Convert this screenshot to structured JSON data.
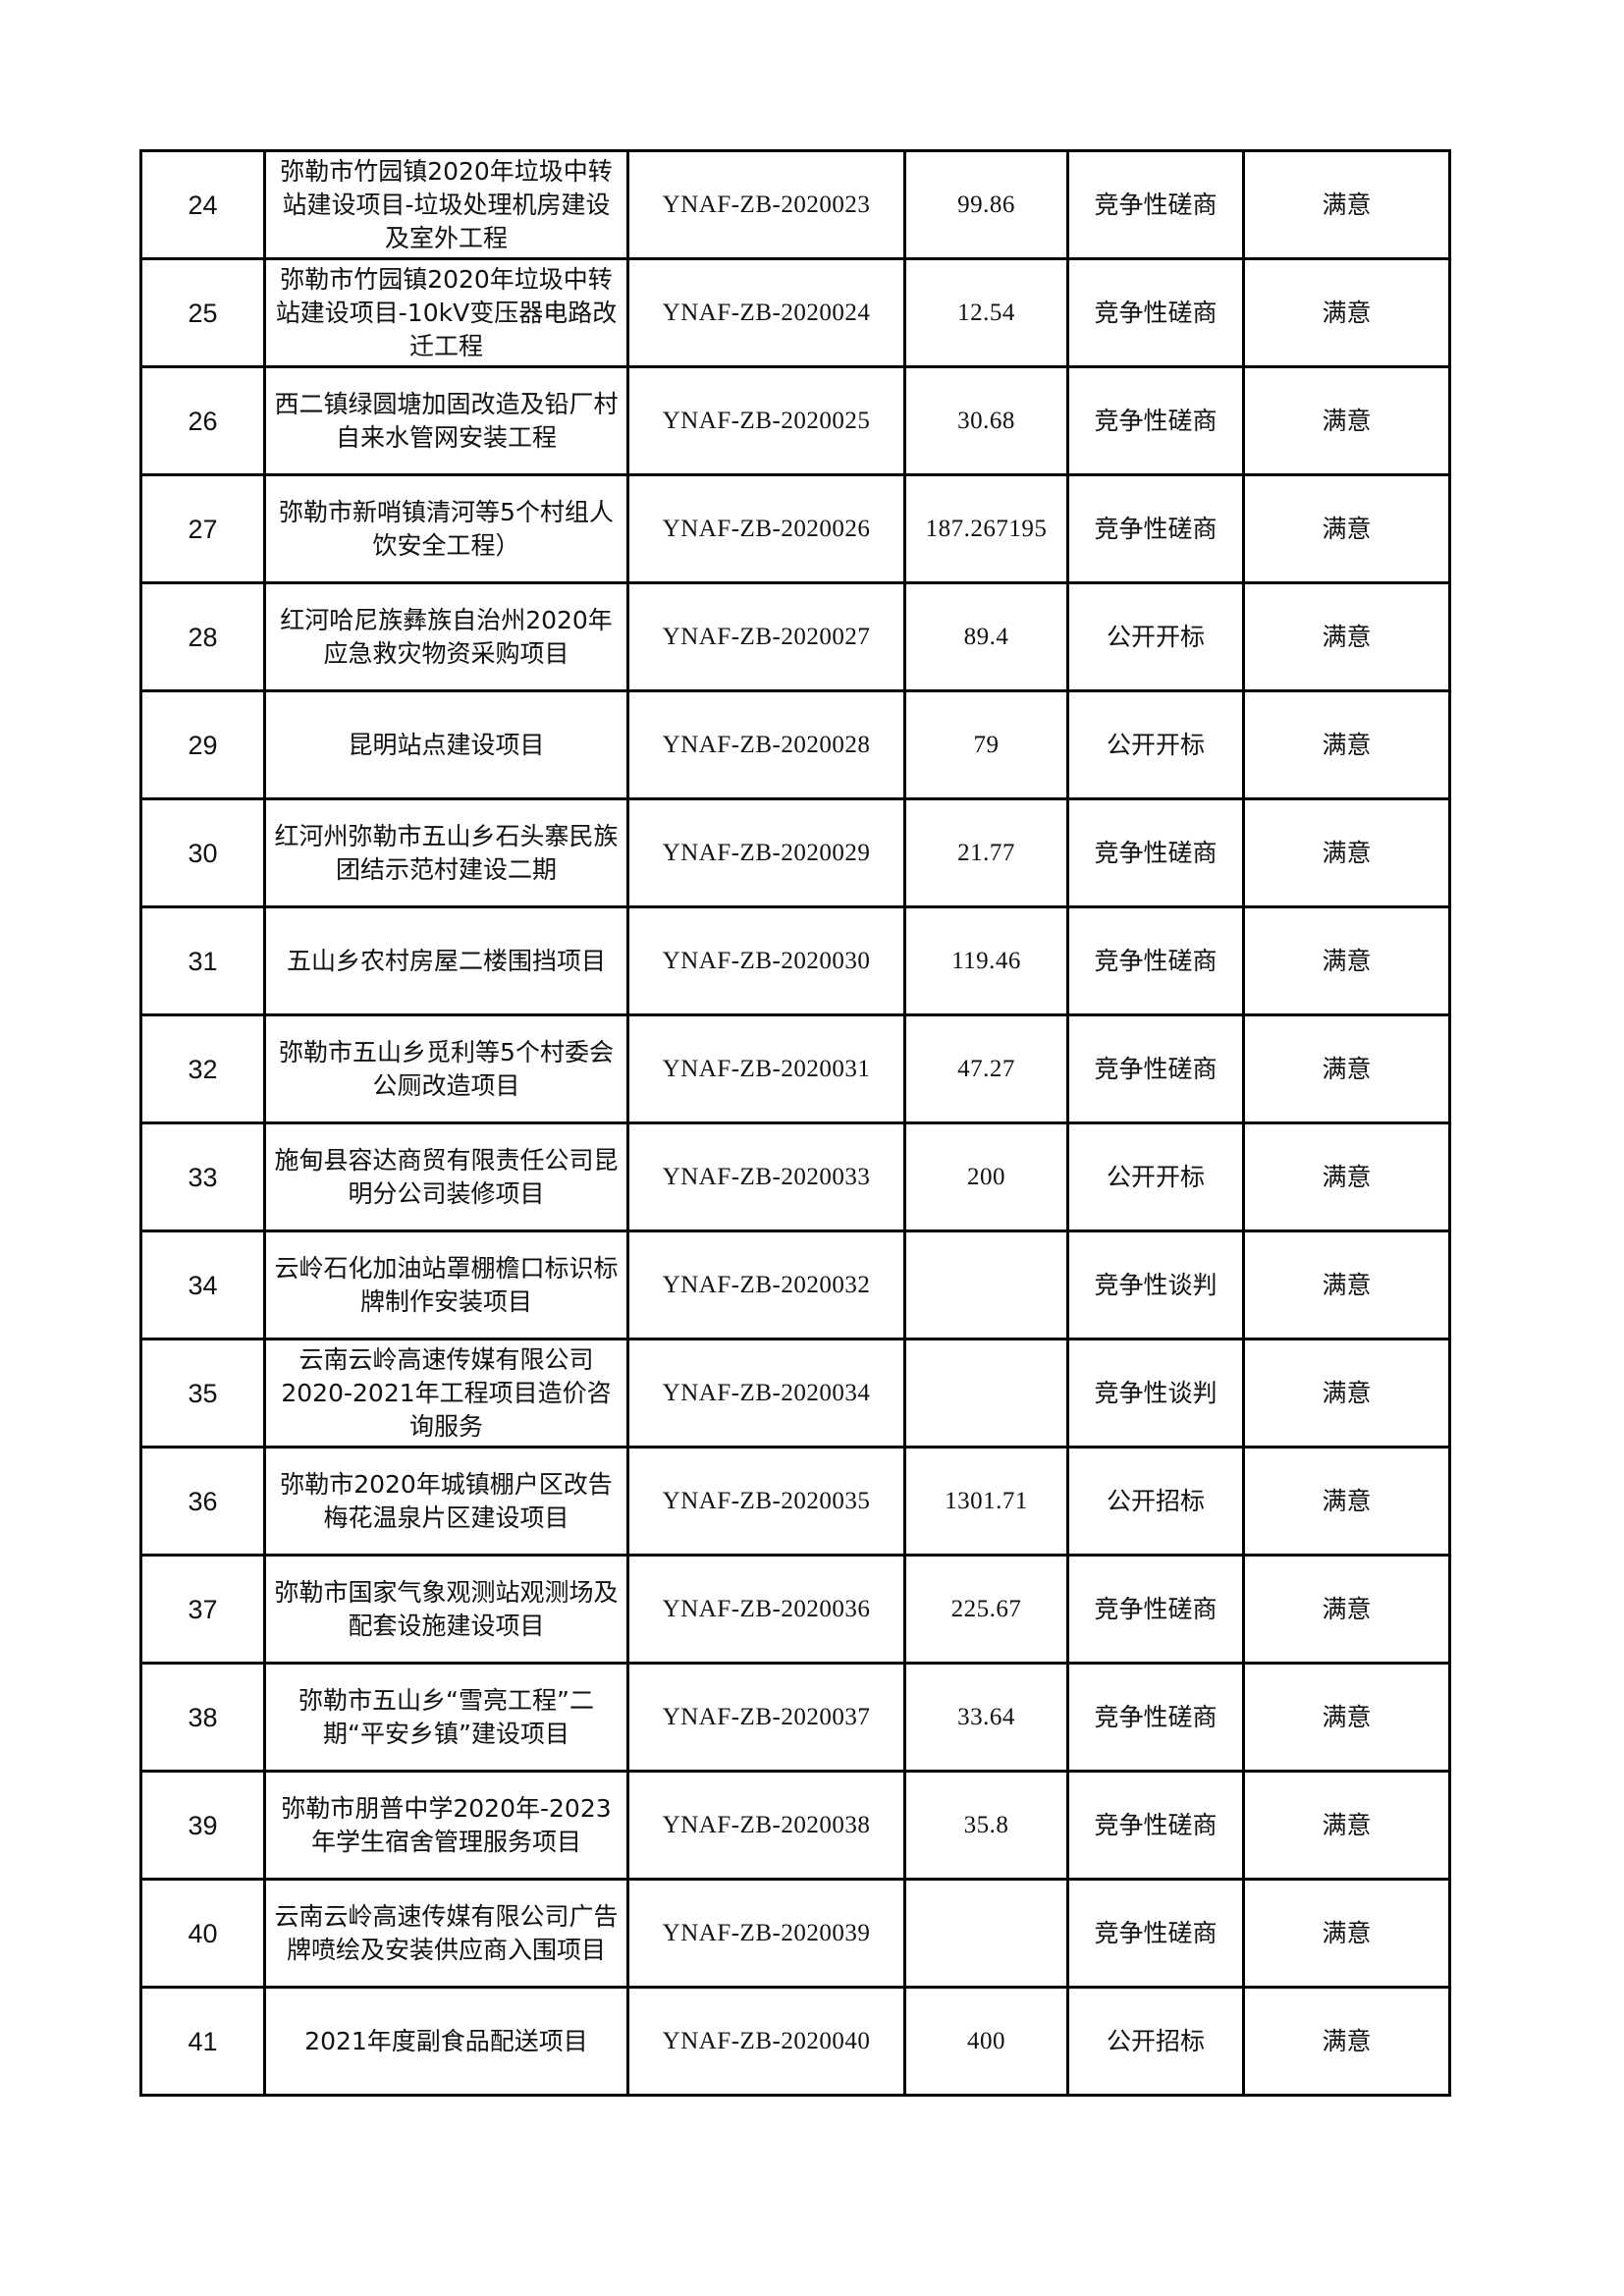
{
  "rows": [
    {
      "no": "24",
      "name": "弥勒市竹园镇2020年垃圾中转站建设项目-垃圾处理机房建设及室外工程",
      "code": "YNAF-ZB-2020023",
      "amount": "99.86",
      "method": "竞争性磋商",
      "result": "满意"
    },
    {
      "no": "25",
      "name": "弥勒市竹园镇2020年垃圾中转站建设项目-10kV变压器电路改迁工程",
      "code": "YNAF-ZB-2020024",
      "amount": "12.54",
      "method": "竞争性磋商",
      "result": "满意"
    },
    {
      "no": "26",
      "name": "西二镇绿圆塘加固改造及铅厂村自来水管网安装工程",
      "code": "YNAF-ZB-2020025",
      "amount": "30.68",
      "method": "竞争性磋商",
      "result": "满意"
    },
    {
      "no": "27",
      "name": "弥勒市新哨镇清河等5个村组人饮安全工程）",
      "code": "YNAF-ZB-2020026",
      "amount": "187.267195",
      "method": "竞争性磋商",
      "result": "满意"
    },
    {
      "no": "28",
      "name": "红河哈尼族彝族自治州2020年应急救灾物资采购项目",
      "code": "YNAF-ZB-2020027",
      "amount": "89.4",
      "method": "公开开标",
      "result": "满意"
    },
    {
      "no": "29",
      "name": "昆明站点建设项目",
      "code": "YNAF-ZB-2020028",
      "amount": "79",
      "method": "公开开标",
      "result": "满意"
    },
    {
      "no": "30",
      "name": "红河州弥勒市五山乡石头寨民族团结示范村建设二期",
      "code": "YNAF-ZB-2020029",
      "amount": "21.77",
      "method": "竞争性磋商",
      "result": "满意"
    },
    {
      "no": "31",
      "name": "五山乡农村房屋二楼围挡项目",
      "code": "YNAF-ZB-2020030",
      "amount": "119.46",
      "method": "竞争性磋商",
      "result": "满意"
    },
    {
      "no": "32",
      "name": "弥勒市五山乡觅利等5个村委会公厕改造项目",
      "code": "YNAF-ZB-2020031",
      "amount": "47.27",
      "method": "竞争性磋商",
      "result": "满意"
    },
    {
      "no": "33",
      "name": "施甸县容达商贸有限责任公司昆明分公司装修项目",
      "code": "YNAF-ZB-2020033",
      "amount": "200",
      "method": "公开开标",
      "result": "满意"
    },
    {
      "no": "34",
      "name": "云岭石化加油站罩棚檐口标识标牌制作安装项目",
      "code": "YNAF-ZB-2020032",
      "amount": "",
      "method": "竞争性谈判",
      "result": "满意"
    },
    {
      "no": "35",
      "name": "云南云岭高速传媒有限公司2020-2021年工程项目造价咨询服务",
      "code": "YNAF-ZB-2020034",
      "amount": "",
      "method": "竞争性谈判",
      "result": "满意"
    },
    {
      "no": "36",
      "name": "弥勒市2020年城镇棚户区改告梅花温泉片区建设项目",
      "code": "YNAF-ZB-2020035",
      "amount": "1301.71",
      "method": "公开招标",
      "result": "满意"
    },
    {
      "no": "37",
      "name": "弥勒市国家气象观测站观测场及配套设施建设项目",
      "code": "YNAF-ZB-2020036",
      "amount": "225.67",
      "method": "竞争性磋商",
      "result": "满意"
    },
    {
      "no": "38",
      "name": "弥勒市五山乡“雪亮工程”二期“平安乡镇”建设项目",
      "code": "YNAF-ZB-2020037",
      "amount": "33.64",
      "method": "竞争性磋商",
      "result": "满意"
    },
    {
      "no": "39",
      "name": "弥勒市朋普中学2020年-2023年学生宿舍管理服务项目",
      "code": "YNAF-ZB-2020038",
      "amount": "35.8",
      "method": "竞争性磋商",
      "result": "满意"
    },
    {
      "no": "40",
      "name": "云南云岭高速传媒有限公司广告牌喷绘及安装供应商入围项目",
      "code": "YNAF-ZB-2020039",
      "amount": "",
      "method": "竞争性磋商",
      "result": "满意"
    },
    {
      "no": "41",
      "name": "2021年度副食品配送项目",
      "code": "YNAF-ZB-2020040",
      "amount": "400",
      "method": "公开招标",
      "result": "满意"
    }
  ]
}
